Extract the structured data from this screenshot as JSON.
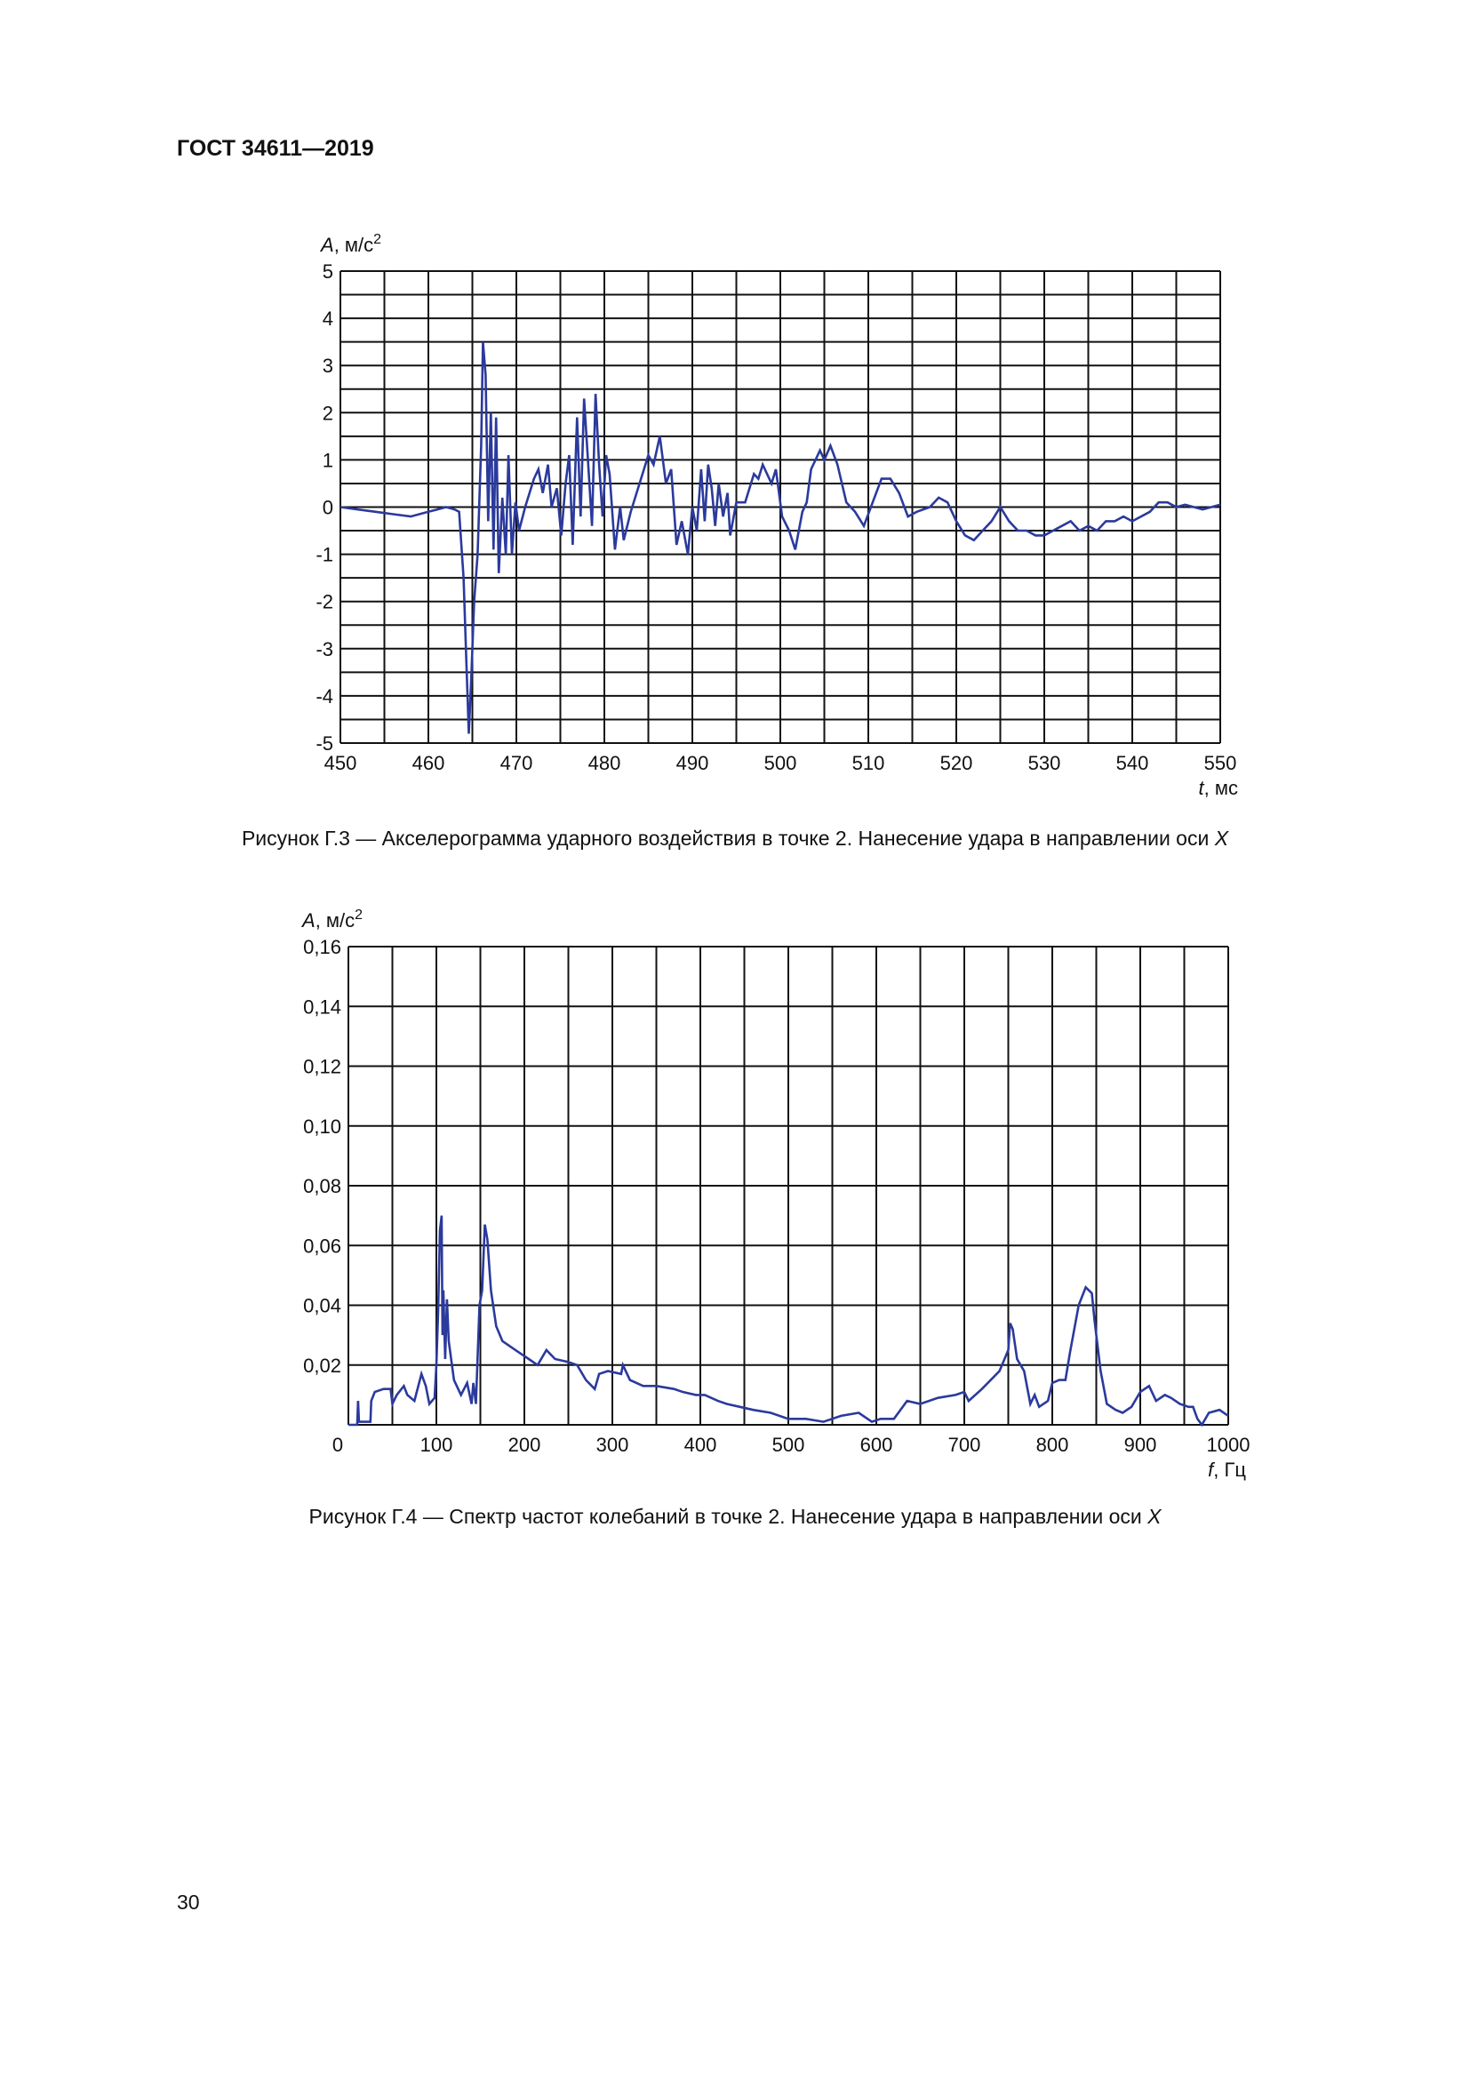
{
  "header": {
    "standard": "ГОСТ 34611—2019"
  },
  "figures": [
    {
      "caption_prefix": "Рисунок Г.3 — Акселерограмма ударного воздействия в точке 2. Нанесение удара в направлении оси ",
      "caption_axis": "X"
    },
    {
      "caption_prefix": "Рисунок Г.4 — Спектр частот колебаний в точке 2. Нанесение удара в направлении оси ",
      "caption_axis": "X"
    }
  ],
  "page_number": "30",
  "chart_data": [
    {
      "type": "line",
      "title": "",
      "ylabel_var": "A",
      "ylabel_unit": ", м/с",
      "ylabel_exp": "2",
      "xlabel_var": "t",
      "xlabel_unit": ", мс",
      "xlim": [
        450,
        550
      ],
      "ylim": [
        -5,
        5
      ],
      "grid": true,
      "grid_step_x": 5,
      "grid_step_y": 0.5,
      "line_color": "#2b3a9c",
      "xticks": [
        "450",
        "460",
        "470",
        "480",
        "490",
        "500",
        "510",
        "520",
        "530",
        "540",
        "550"
      ],
      "yticks": [
        "5",
        "4",
        "3",
        "2",
        "1",
        "0",
        "-1",
        "-2",
        "-3",
        "-4",
        "-5"
      ],
      "x": [
        450,
        452,
        454,
        456,
        458,
        460,
        461,
        462,
        463,
        463.5,
        464,
        464.3,
        464.6,
        464.9,
        465.2,
        465.6,
        466,
        466.2,
        466.5,
        466.8,
        467.1,
        467.4,
        467.7,
        468,
        468.4,
        468.8,
        469.1,
        469.5,
        469.9,
        470.3,
        471,
        472,
        472.5,
        473,
        473.6,
        474,
        474.6,
        475.1,
        475.6,
        476,
        476.4,
        476.9,
        477.3,
        477.7,
        478.2,
        478.6,
        479,
        479.4,
        479.8,
        480.2,
        480.6,
        481.2,
        481.8,
        482.2,
        483,
        484,
        485,
        485.6,
        486.3,
        487,
        487.6,
        488.2,
        488.8,
        489.5,
        490,
        490.5,
        491,
        491.4,
        491.8,
        492.2,
        492.6,
        493,
        493.5,
        494,
        494.3,
        495,
        496,
        497,
        497.5,
        498,
        499,
        499.5,
        500.2,
        501,
        501.7,
        502.5,
        503,
        503.5,
        504.5,
        505,
        505.7,
        506.5,
        507.5,
        508.5,
        509.5,
        510.5,
        511.5,
        512.5,
        513.5,
        514.5,
        515.5,
        517,
        518,
        519,
        520,
        521,
        522,
        523,
        524,
        525,
        526,
        527,
        528,
        529,
        530,
        531,
        532,
        533,
        534,
        535,
        536,
        537,
        538,
        539,
        540,
        541,
        542,
        543,
        544,
        545,
        546,
        547,
        548,
        549,
        550
      ],
      "y": [
        0,
        -0.05,
        -0.1,
        -0.15,
        -0.2,
        -0.1,
        -0.05,
        0,
        -0.05,
        -0.1,
        -1.5,
        -3.2,
        -4.8,
        -3.5,
        -2.0,
        -1.0,
        1.3,
        3.5,
        2.8,
        -0.3,
        2.0,
        -0.9,
        1.9,
        -1.4,
        0.2,
        -1.0,
        1.1,
        -1.0,
        0.1,
        -0.5,
        0,
        0.6,
        0.8,
        0.3,
        0.9,
        0,
        0.4,
        -0.6,
        0.5,
        1.1,
        -0.8,
        1.9,
        -0.2,
        2.3,
        0.8,
        -0.4,
        2.4,
        0.9,
        -0.2,
        1.1,
        0.7,
        -0.9,
        0,
        -0.7,
        -0.1,
        0.5,
        1.1,
        0.9,
        1.5,
        0.5,
        0.8,
        -0.8,
        -0.3,
        -1.0,
        0,
        -0.5,
        0.8,
        -0.3,
        0.9,
        0.4,
        -0.4,
        0.5,
        -0.2,
        0.3,
        -0.6,
        0.1,
        0.1,
        0.7,
        0.6,
        0.9,
        0.5,
        0.8,
        -0.2,
        -0.5,
        -0.9,
        -0.1,
        0.1,
        0.8,
        1.2,
        1.0,
        1.3,
        0.9,
        0.1,
        -0.1,
        -0.4,
        0.1,
        0.6,
        0.6,
        0.3,
        -0.2,
        -0.1,
        0,
        0.2,
        0.1,
        -0.3,
        -0.6,
        -0.7,
        -0.5,
        -0.3,
        0,
        -0.3,
        -0.5,
        -0.5,
        -0.6,
        -0.6,
        -0.5,
        -0.4,
        -0.3,
        -0.5,
        -0.4,
        -0.5,
        -0.3,
        -0.3,
        -0.2,
        -0.3,
        -0.2,
        -0.1,
        0.1,
        0.1,
        0,
        0.05,
        0,
        -0.05,
        0,
        0.05
      ]
    },
    {
      "type": "line",
      "title": "",
      "ylabel_var": "A",
      "ylabel_unit": ", м/с",
      "ylabel_exp": "2",
      "xlabel_var": "f",
      "xlabel_unit": ", Гц",
      "xlim": [
        0,
        1000
      ],
      "ylim": [
        0,
        0.16
      ],
      "grid": true,
      "grid_step_x": 50,
      "grid_step_y": 0.02,
      "line_color": "#2b3a9c",
      "xticks": [
        "0",
        "100",
        "200",
        "300",
        "400",
        "500",
        "600",
        "700",
        "800",
        "900",
        "1000"
      ],
      "yticks": [
        "0,16",
        "0,14",
        "0,12",
        "0,10",
        "0,08",
        "0,06",
        "0,04",
        "0,02"
      ],
      "x": [
        0,
        10,
        11,
        12,
        25,
        26,
        30,
        40,
        48,
        50,
        55,
        63,
        67,
        75,
        83,
        88,
        92,
        98,
        100,
        102,
        104,
        106,
        107,
        108,
        110,
        112,
        114,
        120,
        128,
        135,
        140,
        142,
        145,
        149,
        152,
        155,
        158,
        162,
        168,
        175,
        185,
        195,
        205,
        215,
        225,
        235,
        250,
        260,
        270,
        280,
        285,
        295,
        310,
        312,
        320,
        335,
        350,
        370,
        380,
        395,
        405,
        420,
        430,
        445,
        460,
        480,
        500,
        520,
        540,
        560,
        580,
        595,
        605,
        620,
        635,
        650,
        670,
        690,
        700,
        705,
        720,
        740,
        750,
        752,
        755,
        760,
        768,
        775,
        780,
        785,
        795,
        800,
        808,
        815,
        820,
        830,
        838,
        845,
        848,
        855,
        862,
        872,
        880,
        890,
        900,
        910,
        918,
        928,
        935,
        945,
        955,
        960,
        965,
        970,
        978,
        990,
        1000
      ],
      "y": [
        0,
        0,
        0.008,
        0.001,
        0.001,
        0.008,
        0.011,
        0.012,
        0.012,
        0.007,
        0.01,
        0.013,
        0.01,
        0.008,
        0.017,
        0.013,
        0.007,
        0.009,
        0.02,
        0.038,
        0.065,
        0.07,
        0.03,
        0.045,
        0.022,
        0.042,
        0.028,
        0.015,
        0.01,
        0.014,
        0.007,
        0.014,
        0.007,
        0.04,
        0.045,
        0.067,
        0.062,
        0.045,
        0.033,
        0.028,
        0.026,
        0.024,
        0.022,
        0.02,
        0.025,
        0.022,
        0.021,
        0.02,
        0.015,
        0.012,
        0.017,
        0.018,
        0.017,
        0.02,
        0.015,
        0.013,
        0.013,
        0.012,
        0.011,
        0.01,
        0.01,
        0.008,
        0.007,
        0.006,
        0.005,
        0.004,
        0.002,
        0.002,
        0.001,
        0.003,
        0.004,
        0.001,
        0.002,
        0.002,
        0.008,
        0.007,
        0.009,
        0.01,
        0.011,
        0.008,
        0.012,
        0.018,
        0.025,
        0.034,
        0.032,
        0.022,
        0.018,
        0.007,
        0.01,
        0.006,
        0.008,
        0.014,
        0.015,
        0.015,
        0.024,
        0.04,
        0.046,
        0.044,
        0.035,
        0.018,
        0.007,
        0.005,
        0.004,
        0.006,
        0.011,
        0.013,
        0.008,
        0.01,
        0.009,
        0.007,
        0.006,
        0.006,
        0.002,
        0.0,
        0.004,
        0.005,
        0.003
      ]
    }
  ]
}
